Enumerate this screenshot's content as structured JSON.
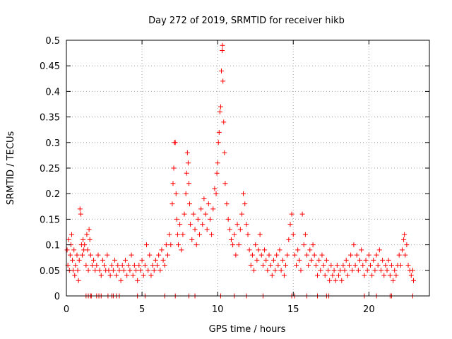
{
  "chart_data": {
    "type": "scatter",
    "title": "Day 272 of 2019, SRMTID for receiver hikb",
    "xlabel": "GPS time / hours",
    "ylabel": "SRMTID / TECUs",
    "xlim": [
      0,
      24
    ],
    "ylim": [
      0,
      0.5
    ],
    "xticks": [
      0,
      5,
      10,
      15,
      20
    ],
    "xtick_labels": [
      "0",
      "5",
      "10",
      "15",
      "20"
    ],
    "yticks": [
      0,
      0.05,
      0.1,
      0.15,
      0.2,
      0.25,
      0.3,
      0.35,
      0.4,
      0.45,
      0.5
    ],
    "ytick_labels": [
      "0",
      "0.05",
      "0.1",
      "0.15",
      "0.2",
      "0.25",
      "0.3",
      "0.35",
      "0.4",
      "0.45",
      "0.5"
    ],
    "grid": true,
    "marker": "plus",
    "color": "#ff0000",
    "series": [
      {
        "name": "SRMTID",
        "points": [
          [
            0.05,
            0.09
          ],
          [
            0.1,
            0.06
          ],
          [
            0.15,
            0.11
          ],
          [
            0.2,
            0.05
          ],
          [
            0.25,
            0.08
          ],
          [
            0.3,
            0.1
          ],
          [
            0.35,
            0.12
          ],
          [
            0.4,
            0.07
          ],
          [
            0.45,
            0.05
          ],
          [
            0.5,
            0.09
          ],
          [
            0.55,
            0.04
          ],
          [
            0.6,
            0.06
          ],
          [
            0.7,
            0.08
          ],
          [
            0.75,
            0.05
          ],
          [
            0.8,
            0.03
          ],
          [
            0.85,
            0.07
          ],
          [
            0.9,
            0.17
          ],
          [
            0.95,
            0.16
          ],
          [
            1.0,
            0.1
          ],
          [
            1.05,
            0.08
          ],
          [
            1.1,
            0.11
          ],
          [
            1.15,
            0.09
          ],
          [
            1.2,
            0.1
          ],
          [
            1.3,
            0.06
          ],
          [
            1.35,
            0.12
          ],
          [
            1.4,
            0.09
          ],
          [
            1.45,
            0.05
          ],
          [
            1.5,
            0.13
          ],
          [
            1.55,
            0.11
          ],
          [
            1.6,
            0.08
          ],
          [
            1.7,
            0.06
          ],
          [
            1.8,
            0.07
          ],
          [
            1.9,
            0.05
          ],
          [
            2.0,
            0.06
          ],
          [
            2.1,
            0.08
          ],
          [
            2.2,
            0.05
          ],
          [
            2.3,
            0.04
          ],
          [
            2.4,
            0.07
          ],
          [
            2.5,
            0.06
          ],
          [
            2.6,
            0.05
          ],
          [
            2.7,
            0.08
          ],
          [
            2.8,
            0.05
          ],
          [
            2.9,
            0.04
          ],
          [
            3.0,
            0.06
          ],
          [
            3.1,
            0.05
          ],
          [
            3.2,
            0.07
          ],
          [
            3.3,
            0.04
          ],
          [
            3.4,
            0.06
          ],
          [
            3.5,
            0.05
          ],
          [
            3.6,
            0.03
          ],
          [
            3.7,
            0.06
          ],
          [
            3.8,
            0.05
          ],
          [
            3.9,
            0.07
          ],
          [
            4.0,
            0.04
          ],
          [
            4.1,
            0.06
          ],
          [
            4.2,
            0.05
          ],
          [
            4.3,
            0.08
          ],
          [
            4.4,
            0.04
          ],
          [
            4.5,
            0.06
          ],
          [
            4.6,
            0.05
          ],
          [
            4.7,
            0.03
          ],
          [
            4.8,
            0.06
          ],
          [
            4.9,
            0.05
          ],
          [
            5.0,
            0.07
          ],
          [
            5.1,
            0.04
          ],
          [
            5.2,
            0.06
          ],
          [
            5.3,
            0.1
          ],
          [
            5.4,
            0.05
          ],
          [
            5.5,
            0.08
          ],
          [
            5.6,
            0.04
          ],
          [
            5.7,
            0.06
          ],
          [
            5.8,
            0.05
          ],
          [
            5.9,
            0.07
          ],
          [
            6.0,
            0.06
          ],
          [
            6.1,
            0.08
          ],
          [
            6.2,
            0.05
          ],
          [
            6.3,
            0.09
          ],
          [
            6.4,
            0.07
          ],
          [
            6.5,
            0.06
          ],
          [
            6.6,
            0.1
          ],
          [
            6.7,
            0.08
          ],
          [
            6.8,
            0.12
          ],
          [
            6.9,
            0.1
          ],
          [
            7.0,
            0.18
          ],
          [
            7.05,
            0.22
          ],
          [
            7.1,
            0.25
          ],
          [
            7.15,
            0.3
          ],
          [
            7.2,
            0.3
          ],
          [
            7.25,
            0.2
          ],
          [
            7.3,
            0.15
          ],
          [
            7.35,
            0.12
          ],
          [
            7.4,
            0.1
          ],
          [
            7.5,
            0.14
          ],
          [
            7.6,
            0.09
          ],
          [
            7.7,
            0.12
          ],
          [
            7.8,
            0.16
          ],
          [
            7.9,
            0.2
          ],
          [
            7.95,
            0.24
          ],
          [
            8.0,
            0.28
          ],
          [
            8.05,
            0.26
          ],
          [
            8.1,
            0.22
          ],
          [
            8.15,
            0.18
          ],
          [
            8.2,
            0.14
          ],
          [
            8.3,
            0.11
          ],
          [
            8.4,
            0.16
          ],
          [
            8.5,
            0.13
          ],
          [
            8.6,
            0.1
          ],
          [
            8.7,
            0.15
          ],
          [
            8.8,
            0.12
          ],
          [
            8.9,
            0.17
          ],
          [
            9.0,
            0.14
          ],
          [
            9.1,
            0.19
          ],
          [
            9.2,
            0.16
          ],
          [
            9.3,
            0.13
          ],
          [
            9.4,
            0.18
          ],
          [
            9.5,
            0.15
          ],
          [
            9.6,
            0.12
          ],
          [
            9.7,
            0.17
          ],
          [
            9.8,
            0.21
          ],
          [
            9.9,
            0.2
          ],
          [
            9.95,
            0.24
          ],
          [
            10.0,
            0.26
          ],
          [
            10.05,
            0.3
          ],
          [
            10.1,
            0.32
          ],
          [
            10.15,
            0.36
          ],
          [
            10.2,
            0.37
          ],
          [
            10.25,
            0.44
          ],
          [
            10.3,
            0.48
          ],
          [
            10.32,
            0.49
          ],
          [
            10.35,
            0.42
          ],
          [
            10.4,
            0.34
          ],
          [
            10.45,
            0.28
          ],
          [
            10.5,
            0.22
          ],
          [
            10.6,
            0.18
          ],
          [
            10.7,
            0.15
          ],
          [
            10.8,
            0.13
          ],
          [
            10.9,
            0.11
          ],
          [
            11.0,
            0.1
          ],
          [
            11.1,
            0.12
          ],
          [
            11.2,
            0.08
          ],
          [
            11.3,
            0.14
          ],
          [
            11.4,
            0.1
          ],
          [
            11.5,
            0.13
          ],
          [
            11.6,
            0.16
          ],
          [
            11.7,
            0.2
          ],
          [
            11.8,
            0.18
          ],
          [
            11.9,
            0.14
          ],
          [
            12.0,
            0.12
          ],
          [
            12.1,
            0.09
          ],
          [
            12.2,
            0.06
          ],
          [
            12.3,
            0.08
          ],
          [
            12.4,
            0.05
          ],
          [
            12.5,
            0.1
          ],
          [
            12.6,
            0.07
          ],
          [
            12.7,
            0.09
          ],
          [
            12.8,
            0.12
          ],
          [
            12.9,
            0.08
          ],
          [
            13.0,
            0.06
          ],
          [
            13.1,
            0.09
          ],
          [
            13.2,
            0.07
          ],
          [
            13.3,
            0.05
          ],
          [
            13.4,
            0.08
          ],
          [
            13.5,
            0.06
          ],
          [
            13.6,
            0.04
          ],
          [
            13.7,
            0.07
          ],
          [
            13.8,
            0.05
          ],
          [
            13.9,
            0.08
          ],
          [
            14.0,
            0.06
          ],
          [
            14.1,
            0.09
          ],
          [
            14.2,
            0.05
          ],
          [
            14.3,
            0.07
          ],
          [
            14.4,
            0.04
          ],
          [
            14.5,
            0.06
          ],
          [
            14.6,
            0.08
          ],
          [
            14.7,
            0.11
          ],
          [
            14.8,
            0.14
          ],
          [
            14.9,
            0.16
          ],
          [
            15.0,
            0.12
          ],
          [
            15.1,
            0.08
          ],
          [
            15.2,
            0.06
          ],
          [
            15.3,
            0.09
          ],
          [
            15.4,
            0.07
          ],
          [
            15.5,
            0.05
          ],
          [
            15.6,
            0.16
          ],
          [
            15.7,
            0.1
          ],
          [
            15.8,
            0.12
          ],
          [
            15.9,
            0.08
          ],
          [
            16.0,
            0.06
          ],
          [
            16.1,
            0.09
          ],
          [
            16.2,
            0.07
          ],
          [
            16.3,
            0.1
          ],
          [
            16.4,
            0.08
          ],
          [
            16.5,
            0.06
          ],
          [
            16.6,
            0.04
          ],
          [
            16.7,
            0.07
          ],
          [
            16.8,
            0.05
          ],
          [
            16.9,
            0.08
          ],
          [
            17.0,
            0.06
          ],
          [
            17.1,
            0.04
          ],
          [
            17.2,
            0.07
          ],
          [
            17.3,
            0.05
          ],
          [
            17.4,
            0.03
          ],
          [
            17.5,
            0.06
          ],
          [
            17.6,
            0.04
          ],
          [
            17.7,
            0.05
          ],
          [
            17.8,
            0.03
          ],
          [
            17.9,
            0.06
          ],
          [
            18.0,
            0.04
          ],
          [
            18.1,
            0.05
          ],
          [
            18.2,
            0.03
          ],
          [
            18.3,
            0.06
          ],
          [
            18.4,
            0.05
          ],
          [
            18.5,
            0.07
          ],
          [
            18.6,
            0.04
          ],
          [
            18.7,
            0.06
          ],
          [
            18.8,
            0.08
          ],
          [
            18.9,
            0.05
          ],
          [
            19.0,
            0.1
          ],
          [
            19.1,
            0.06
          ],
          [
            19.2,
            0.08
          ],
          [
            19.3,
            0.05
          ],
          [
            19.4,
            0.07
          ],
          [
            19.5,
            0.09
          ],
          [
            19.6,
            0.06
          ],
          [
            19.7,
            0.04
          ],
          [
            19.8,
            0.07
          ],
          [
            19.9,
            0.05
          ],
          [
            20.0,
            0.08
          ],
          [
            20.1,
            0.06
          ],
          [
            20.2,
            0.04
          ],
          [
            20.3,
            0.07
          ],
          [
            20.4,
            0.05
          ],
          [
            20.5,
            0.08
          ],
          [
            20.6,
            0.06
          ],
          [
            20.7,
            0.09
          ],
          [
            20.8,
            0.05
          ],
          [
            20.9,
            0.07
          ],
          [
            21.0,
            0.04
          ],
          [
            21.1,
            0.06
          ],
          [
            21.2,
            0.05
          ],
          [
            21.3,
            0.07
          ],
          [
            21.4,
            0.04
          ],
          [
            21.5,
            0.06
          ],
          [
            21.6,
            0.03
          ],
          [
            21.7,
            0.05
          ],
          [
            21.8,
            0.04
          ],
          [
            21.9,
            0.06
          ],
          [
            22.0,
            0.08
          ],
          [
            22.1,
            0.06
          ],
          [
            22.2,
            0.09
          ],
          [
            22.3,
            0.11
          ],
          [
            22.35,
            0.12
          ],
          [
            22.4,
            0.08
          ],
          [
            22.5,
            0.1
          ],
          [
            22.6,
            0.06
          ],
          [
            22.7,
            0.05
          ],
          [
            22.8,
            0.04
          ],
          [
            22.9,
            0.05
          ],
          [
            22.95,
            0.03
          ]
        ],
        "zero_points": [
          1.3,
          1.45,
          1.6,
          1.65,
          2.0,
          2.15,
          2.3,
          2.75,
          3.0,
          3.1,
          3.3,
          3.5,
          4.7,
          5.2,
          6.5,
          7.2,
          8.1,
          8.5,
          10.2,
          11.1,
          11.9,
          13.0,
          14.9,
          15.1,
          15.9,
          16.6,
          17.2,
          17.35,
          19.7,
          20.5,
          21.4,
          21.5,
          22.9
        ]
      }
    ]
  }
}
